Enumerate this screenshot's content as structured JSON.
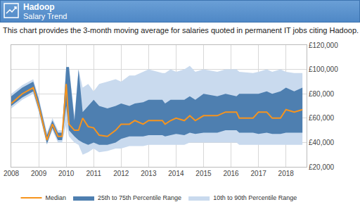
{
  "chart_data": {
    "type": "band",
    "title": "Hadoop",
    "subtitle": "Salary Trend",
    "description": "This chart provides the 3-month moving average for salaries quoted in permanent IT jobs citing Hadoop.",
    "x": [
      2008,
      2008.4,
      2008.8,
      2009,
      2009.3,
      2009.5,
      2009.7,
      2009.85,
      2010,
      2010.1,
      2010.3,
      2010.45,
      2010.6,
      2010.8,
      2011,
      2011.2,
      2011.5,
      2011.8,
      2012,
      2012.3,
      2012.5,
      2012.8,
      2013,
      2013.5,
      2013.6,
      2013.8,
      2014,
      2014.3,
      2014.5,
      2014.7,
      2015,
      2015.5,
      2015.8,
      2016.2,
      2016.3,
      2016.8,
      2017,
      2017.3,
      2017.5,
      2017.8,
      2018,
      2018.3,
      2018.6
    ],
    "series": [
      {
        "name": "Median",
        "type": "line",
        "color": "#f7941d",
        "values": [
          72000,
          80000,
          85000,
          70000,
          42000,
          55000,
          45000,
          45000,
          88000,
          55000,
          50000,
          50000,
          60000,
          53000,
          52000,
          46000,
          45000,
          50000,
          55000,
          55000,
          58000,
          55000,
          58000,
          58000,
          55000,
          58000,
          60000,
          58000,
          62000,
          58000,
          62000,
          62000,
          65000,
          65000,
          60000,
          60000,
          65000,
          65000,
          60000,
          60000,
          67000,
          65000,
          67000
        ]
      },
      {
        "name": "25th to 75th Percentile Range",
        "type": "band",
        "color": "#4e7fb0",
        "low": [
          70000,
          77000,
          82000,
          67000,
          39000,
          52000,
          42000,
          42000,
          70000,
          50000,
          45000,
          42000,
          40000,
          38000,
          40000,
          38000,
          38000,
          40000,
          43000,
          45000,
          45000,
          45000,
          46000,
          46000,
          45000,
          46000,
          47000,
          46000,
          48000,
          47000,
          48000,
          48000,
          50000,
          50000,
          48000,
          48000,
          47000,
          48000,
          47000,
          47000,
          48000,
          48000,
          48000
        ],
        "high": [
          78000,
          85000,
          90000,
          75000,
          46000,
          58000,
          48000,
          48000,
          102000,
          102000,
          58000,
          100000,
          65000,
          70000,
          75000,
          70000,
          68000,
          70000,
          72000,
          70000,
          72000,
          73000,
          75000,
          75000,
          72000,
          75000,
          75000,
          75000,
          78000,
          75000,
          80000,
          78000,
          80000,
          78000,
          80000,
          80000,
          80000,
          82000,
          80000,
          82000,
          85000,
          82000,
          85000
        ]
      },
      {
        "name": "10th to 90th Percentile Range",
        "type": "band",
        "color": "#c9daee",
        "low": [
          68000,
          75000,
          80000,
          65000,
          38000,
          50000,
          40000,
          40000,
          55000,
          45000,
          40000,
          38000,
          30000,
          32000,
          35000,
          32000,
          33000,
          35000,
          35000,
          37000,
          37000,
          37000,
          38000,
          38000,
          38000,
          38000,
          38000,
          38000,
          40000,
          40000,
          40000,
          40000,
          40000,
          40000,
          38000,
          38000,
          38000,
          38000,
          38000,
          38000,
          38000,
          38000,
          38000
        ],
        "high": [
          80000,
          87000,
          92000,
          77000,
          48000,
          60000,
          50000,
          50000,
          102000,
          102000,
          62000,
          100000,
          85000,
          88000,
          82000,
          88000,
          90000,
          92000,
          90000,
          95000,
          95000,
          98000,
          100000,
          97000,
          97000,
          100000,
          98000,
          100000,
          103000,
          98000,
          100000,
          98000,
          100000,
          100000,
          98000,
          97000,
          98000,
          100000,
          98000,
          100000,
          98000,
          97000,
          97000
        ]
      }
    ],
    "xlim": [
      2008,
      2018.75
    ],
    "xticks": [
      2008,
      2009,
      2010,
      2011,
      2012,
      2013,
      2014,
      2015,
      2016,
      2017,
      2018
    ],
    "ylim": [
      20000,
      120000
    ],
    "yticks": [
      {
        "value": 20000,
        "label": "£20,000"
      },
      {
        "value": 40000,
        "label": "£40,000"
      },
      {
        "value": 60000,
        "label": "£60,000"
      },
      {
        "value": 80000,
        "label": "£80,000"
      },
      {
        "value": 100000,
        "label": "£100,000"
      },
      {
        "value": 120000,
        "label": "£120,000"
      }
    ],
    "grid": true,
    "legend": "bottom"
  }
}
